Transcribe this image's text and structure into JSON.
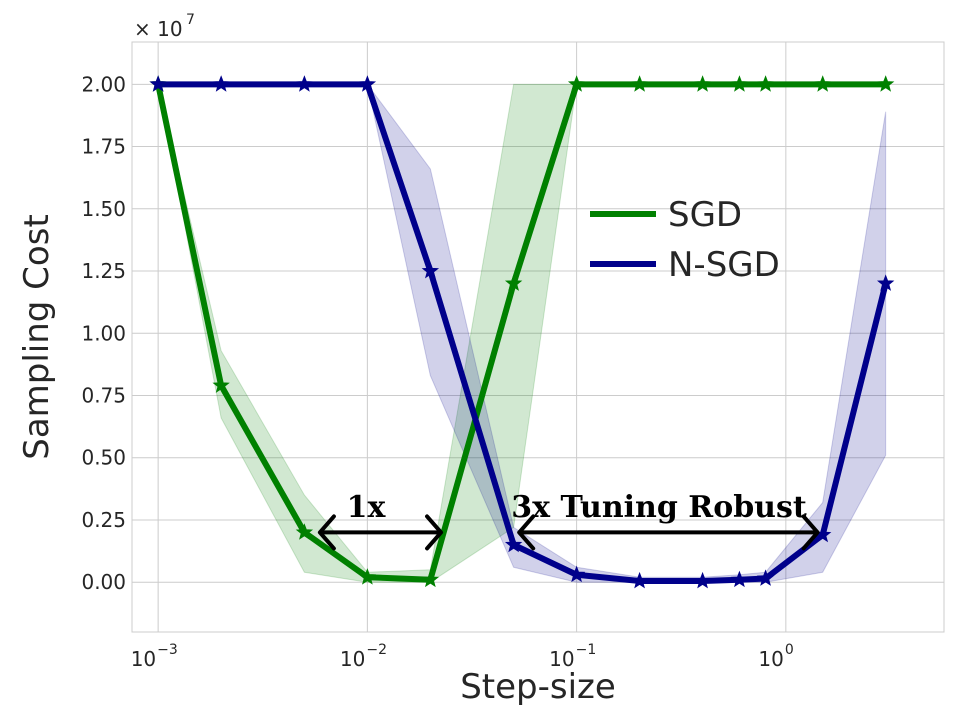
{
  "chart_data": {
    "type": "line",
    "xlabel": "Step-size",
    "ylabel": "Sampling Cost",
    "x_scale": "log",
    "xlim": [
      0.00075,
      5.7
    ],
    "ylim": [
      -2000000,
      21700000
    ],
    "y_multiplier_label": "× 10",
    "y_multiplier_exp": "7",
    "y_ticks": [
      0,
      2500000,
      5000000,
      7500000,
      10000000,
      12500000,
      15000000,
      17500000,
      20000000
    ],
    "y_tick_labels": [
      "0.00",
      "0.25",
      "0.50",
      "0.75",
      "1.00",
      "1.25",
      "1.50",
      "1.75",
      "2.00"
    ],
    "x_ticks": [
      0.001,
      0.01,
      0.1,
      1
    ],
    "x_tick_bases": [
      "10",
      "10",
      "10",
      "10"
    ],
    "x_tick_exps": [
      "−3",
      "−2",
      "−1",
      "0"
    ],
    "grid": true,
    "legend_position": "center-right",
    "series": [
      {
        "name": "SGD",
        "color": "#008000",
        "marker": "star",
        "x": [
          0.001,
          0.002,
          0.005,
          0.01,
          0.02,
          0.05,
          0.1,
          0.2,
          0.4,
          0.6,
          0.8,
          1.5,
          3.0
        ],
        "y": [
          20000000,
          7900000,
          2000000,
          200000,
          100000,
          12000000,
          20000000,
          20000000,
          20000000,
          20000000,
          20000000,
          20000000,
          20000000
        ],
        "band_lower": [
          20000000,
          6600000,
          400000,
          0,
          0,
          2200000,
          20000000,
          20000000,
          20000000,
          20000000,
          20000000,
          20000000,
          20000000
        ],
        "band_upper": [
          20000000,
          9300000,
          3500000,
          400000,
          500000,
          20000000,
          20000000,
          20000000,
          20000000,
          20000000,
          20000000,
          20000000,
          20000000
        ]
      },
      {
        "name": "N-SGD",
        "color": "#00008b",
        "marker": "star",
        "x": [
          0.001,
          0.002,
          0.005,
          0.01,
          0.02,
          0.05,
          0.1,
          0.2,
          0.4,
          0.6,
          0.8,
          1.5,
          3.0
        ],
        "y": [
          20000000,
          20000000,
          20000000,
          20000000,
          12500000,
          1500000,
          300000,
          50000,
          50000,
          100000,
          150000,
          1900000,
          12000000
        ],
        "band_lower": [
          20000000,
          20000000,
          20000000,
          20000000,
          8300000,
          600000,
          0,
          0,
          0,
          0,
          0,
          400000,
          5100000
        ],
        "band_upper": [
          20000000,
          20000000,
          20000000,
          20000000,
          16600000,
          2200000,
          600000,
          200000,
          200000,
          300000,
          400000,
          3200000,
          18900000
        ]
      }
    ],
    "annotations": [
      {
        "text": "1x",
        "x_from": 0.0058,
        "x_to": 0.023,
        "y": 2000000
      },
      {
        "text": "3x Tuning Robust",
        "x_from": 0.052,
        "x_to": 1.45,
        "y": 2000000
      }
    ]
  }
}
